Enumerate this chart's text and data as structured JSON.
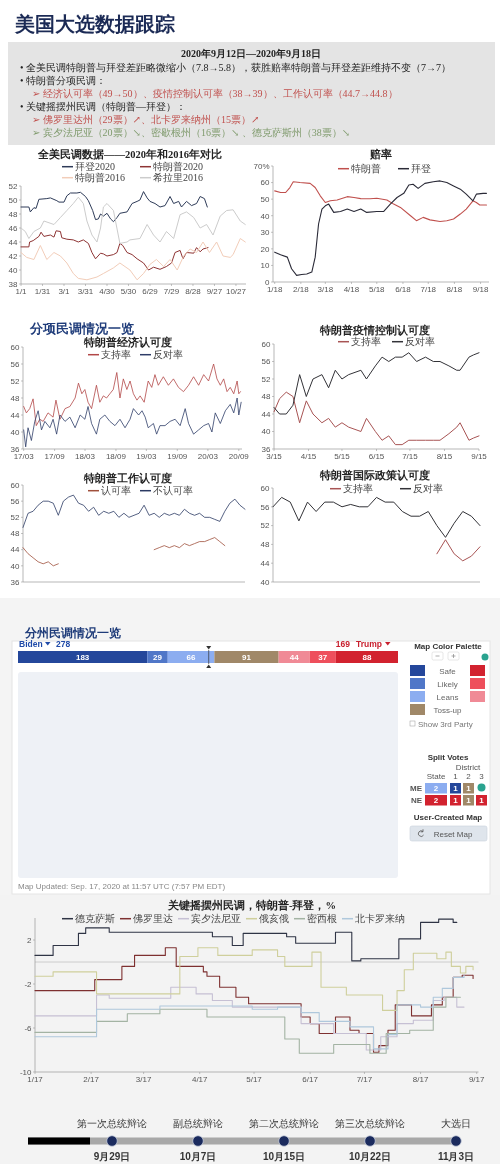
{
  "chart_data": [
    {
      "type": "other",
      "title": "美国大选数据跟踪",
      "subtitle": "2020年9月12日—2020年9月18日",
      "annotations": [
        "• 全美民调特朗普与拜登差距略微缩小（7.8→5.8），获胜赔率特朗普与拜登差距维持不变（7→7）",
        "• 特朗普分项民调：",
        "➢ 经济认可率（49→50）、疫情控制认可率（38→39）、工作认可率（44.7→44.8）",
        "• 关键摇摆州民调（特朗普—拜登）：",
        "➢ 佛罗里达州（29票）↗、北卡罗来纳州（15票）↗",
        "➢ 宾夕法尼亚（20票）↘、密歇根州（16票）↘ 、德克萨斯州（38票）↘"
      ]
    },
    {
      "type": "line",
      "title": "全美民调数据——2020年和2016年对比",
      "xlim": [
        "--01-01",
        "--11-10"
      ],
      "xticks": [
        {
          "value": "--01-01",
          "label": "1/1"
        },
        {
          "value": "--01-31",
          "label": "1/31"
        },
        {
          "value": "--03-01",
          "label": "3/1"
        },
        {
          "value": "--03-31",
          "label": "3/31"
        },
        {
          "value": "--04-30",
          "label": "4/30"
        },
        {
          "value": "--05-30",
          "label": "5/30"
        },
        {
          "value": "--06-29",
          "label": "6/29"
        },
        {
          "value": "--07-29",
          "label": "7/29"
        },
        {
          "value": "--08-28",
          "label": "8/28"
        },
        {
          "value": "--09-27",
          "label": "9/27"
        },
        {
          "value": "--10-27",
          "label": "10/27"
        }
      ],
      "ylim": [
        38,
        52
      ],
      "yticks": [
        38,
        40,
        42,
        44,
        46,
        48,
        50,
        52
      ],
      "legend": "top",
      "series": [
        {
          "name": "拜登2020",
          "color": "#2e3b58",
          "x": [
            "--01-01",
            "--01-12",
            "--01-14",
            "--01-19",
            "--01-22",
            "--01-26",
            "--02-06",
            "--02-11",
            "--02-20",
            "--02-23",
            "--03-01",
            "--03-05",
            "--03-10",
            "--03-19",
            "--03-24",
            "--03-31",
            "--04-04",
            "--04-10",
            "--04-14",
            "--04-18",
            "--04-21",
            "--04-25",
            "--04-30",
            "--05-05",
            "--05-09",
            "--05-14",
            "--05-18",
            "--05-28",
            "--06-04",
            "--06-11",
            "--06-15",
            "--06-20",
            "--06-25",
            "--06-29",
            "--07-06",
            "--07-13",
            "--07-20",
            "--07-27",
            "--08-01",
            "--08-08",
            "--08-12",
            "--08-19",
            "--08-26",
            "--09-02",
            "--09-07",
            "--09-13",
            "--09-17"
          ],
          "values": [
            49.0,
            49.0,
            48.3,
            48.9,
            48.8,
            50.1,
            50.2,
            50.3,
            49.9,
            49.7,
            49.7,
            50.6,
            51.0,
            51.0,
            51.1,
            50.5,
            49.9,
            48.5,
            47.2,
            47.3,
            48.0,
            47.7,
            48.1,
            47.3,
            46.9,
            47.5,
            48.1,
            48.3,
            49.5,
            49.8,
            50.0,
            51.2,
            50.3,
            49.8,
            49.5,
            49.0,
            49.2,
            50.5,
            49.5,
            49.8,
            49.0,
            49.8,
            49.2,
            49.5,
            50.5,
            50.2,
            49.0
          ]
        },
        {
          "name": "特朗普2020",
          "color": "#8e3434",
          "x": [
            "--01-01",
            "--01-12",
            "--01-13",
            "--01-18",
            "--01-26",
            "--01-29",
            "--02-02",
            "--02-11",
            "--02-16",
            "--02-19",
            "--02-25",
            "--02-27",
            "--03-05",
            "--03-14",
            "--03-21",
            "--03-28",
            "--04-04",
            "--04-09",
            "--04-14",
            "--04-21",
            "--04-25",
            "--04-30",
            "--05-09",
            "--05-14",
            "--05-18",
            "--05-22",
            "--05-28",
            "--06-04",
            "--06-11",
            "--06-20",
            "--06-27",
            "--07-04",
            "--07-13",
            "--07-22",
            "--07-29",
            "--08-03",
            "--08-10",
            "--08-14",
            "--08-19",
            "--08-29",
            "--09-02",
            "--09-07",
            "--09-11",
            "--09-18"
          ],
          "values": [
            43.3,
            43.3,
            44.0,
            44.2,
            44.8,
            45.4,
            44.8,
            45.0,
            44.7,
            45.6,
            45.5,
            44.6,
            44.4,
            44.3,
            44.0,
            44.3,
            43.8,
            42.5,
            41.6,
            42.4,
            42.3,
            42.0,
            42.2,
            42.5,
            43.8,
            43.5,
            42.5,
            42.2,
            41.6,
            41.0,
            40.0,
            40.4,
            40.1,
            40.5,
            41.0,
            42.5,
            42.8,
            41.6,
            42.5,
            42.4,
            43.2,
            42.6,
            43.0,
            43.2
          ]
        },
        {
          "name": "特朗普2016",
          "color": "#f2cdb9",
          "x": [
            "--01-01",
            "--01-09",
            "--01-19",
            "--01-28",
            "--02-06",
            "--02-16",
            "--02-25",
            "--03-05",
            "--03-14",
            "--03-21",
            "--04-02",
            "--04-16",
            "--04-25",
            "--05-09",
            "--05-18",
            "--06-01",
            "--06-11",
            "--06-20",
            "--06-29",
            "--07-08",
            "--07-18",
            "--07-27",
            "--08-06",
            "--08-15",
            "--08-24",
            "--09-02",
            "--09-11",
            "--09-20",
            "--09-30",
            "--10-09",
            "--10-19",
            "--10-23",
            "--11-02",
            "--11-09"
          ],
          "values": [
            42.5,
            41.8,
            41.5,
            43.5,
            41.5,
            42.5,
            42.0,
            41.0,
            39.5,
            38.8,
            38.6,
            39.0,
            39.5,
            40.3,
            41.0,
            40.0,
            38.6,
            39.5,
            40.8,
            41.5,
            40.5,
            41.5,
            40.0,
            42.0,
            43.0,
            42.5,
            44.0,
            42.5,
            44.0,
            42.0,
            41.8,
            42.2,
            44.5,
            44.0
          ]
        },
        {
          "name": "希拉里2016",
          "color": "#cccccc",
          "x": [
            "--01-01",
            "--01-07",
            "--01-12",
            "--01-19",
            "--01-28",
            "--02-02",
            "--02-16",
            "--02-25",
            "--03-05",
            "--03-14",
            "--03-21",
            "--03-28",
            "--04-02",
            "--04-09",
            "--04-16",
            "--04-21",
            "--04-25",
            "--04-30",
            "--05-09",
            "--05-18",
            "--05-28",
            "--06-01",
            "--06-15",
            "--06-25",
            "--07-04",
            "--07-13",
            "--07-22",
            "--08-01",
            "--08-10",
            "--08-19",
            "--08-29",
            "--09-07",
            "--09-16",
            "--09-25",
            "--10-05",
            "--10-14",
            "--10-23",
            "--11-02",
            "--11-09"
          ],
          "values": [
            46.0,
            45.5,
            44.5,
            45.5,
            46.0,
            47.0,
            46.5,
            47.5,
            48.5,
            49.5,
            50.4,
            49.5,
            47.0,
            45.0,
            44.0,
            46.0,
            49.0,
            49.5,
            48.5,
            43.8,
            44.0,
            44.3,
            44.5,
            46.5,
            45.0,
            44.0,
            45.5,
            44.5,
            47.9,
            48.3,
            47.5,
            46.0,
            46.5,
            45.0,
            47.7,
            48.5,
            48.6,
            47.0,
            46.5
          ]
        }
      ]
    },
    {
      "type": "line",
      "title": "赔率",
      "xlim": [
        "--01-16",
        "--09-28"
      ],
      "xticks": [
        {
          "value": "--01-18",
          "label": "1/18"
        },
        {
          "value": "--02-18",
          "label": "2/18"
        },
        {
          "value": "--03-18",
          "label": "3/18"
        },
        {
          "value": "--04-18",
          "label": "4/18"
        },
        {
          "value": "--05-18",
          "label": "5/18"
        },
        {
          "value": "--06-18",
          "label": "6/18"
        },
        {
          "value": "--07-18",
          "label": "7/18"
        },
        {
          "value": "--08-18",
          "label": "8/18"
        },
        {
          "value": "--09-18",
          "label": "9/18"
        }
      ],
      "ylim": [
        0,
        70
      ],
      "yticks": [
        0,
        10,
        20,
        30,
        40,
        50,
        60,
        {
          "value": 70,
          "label": "70%"
        }
      ],
      "legend": "top",
      "series": [
        {
          "name": "特朗普",
          "color": "#c0504d",
          "x": [
            "--01-18",
            "--01-25",
            "--01-31",
            "--02-05",
            "--02-09",
            "--02-17",
            "--02-29",
            "--03-06",
            "--03-12",
            "--03-18",
            "--03-24",
            "--04-01",
            "--04-13",
            "--04-21",
            "--04-29",
            "--05-10",
            "--05-18",
            "--05-30",
            "--06-07",
            "--06-15",
            "--06-27",
            "--07-04",
            "--07-12",
            "--07-20",
            "--08-01",
            "--08-09",
            "--08-17",
            "--08-25",
            "--09-01",
            "--09-09",
            "--09-13",
            "--09-17",
            "--09-25"
          ],
          "values": [
            55,
            54,
            54,
            57,
            60.5,
            60,
            59.5,
            57,
            52,
            48,
            49,
            49.5,
            51.5,
            51,
            50.3,
            50.2,
            50.5,
            49.5,
            47,
            45,
            40,
            37,
            39,
            37.5,
            36.5,
            37,
            38,
            41,
            44,
            49,
            48,
            46.5,
            46.5
          ]
        },
        {
          "name": "拜登",
          "color": "#2b2b38",
          "x": [
            "--01-18",
            "--01-25",
            "--02-02",
            "--02-07",
            "--02-13",
            "--02-19",
            "--02-25",
            "--03-02",
            "--03-06",
            "--03-10",
            "--03-14",
            "--03-18",
            "--03-22",
            "--03-28",
            "--04-05",
            "--04-13",
            "--04-21",
            "--04-29",
            "--05-06",
            "--05-18",
            "--05-26",
            "--06-03",
            "--06-11",
            "--06-19",
            "--06-25",
            "--06-30",
            "--07-06",
            "--07-14",
            "--07-24",
            "--08-01",
            "--08-09",
            "--08-17",
            "--08-25",
            "--09-01",
            "--09-09",
            "--09-13",
            "--09-21",
            "--09-25"
          ],
          "values": [
            18,
            16.5,
            15,
            8,
            4,
            4.5,
            4.8,
            6,
            15,
            35,
            44,
            46,
            47,
            42,
            42.5,
            44,
            42.5,
            44,
            42,
            42.5,
            42.5,
            47,
            51,
            53.5,
            58.5,
            59,
            56.5,
            59.5,
            60.5,
            61,
            60,
            58,
            56,
            53,
            49,
            53,
            53.5,
            53.5
          ]
        }
      ]
    },
    {
      "type": "other",
      "title": "分项民调情况一览"
    },
    {
      "type": "line",
      "title": "特朗普经济认可度",
      "xlim": [
        "2017-02-25",
        "2020-09-20"
      ],
      "xticks": [
        {
          "value": "2017-03",
          "label": "17/03"
        },
        {
          "value": "2017-09",
          "label": "17/09"
        },
        {
          "value": "2018-03",
          "label": "18/03"
        },
        {
          "value": "2018-09",
          "label": "18/09"
        },
        {
          "value": "2019-03",
          "label": "19/03"
        },
        {
          "value": "2019-09",
          "label": "19/09"
        },
        {
          "value": "2020-03",
          "label": "20/03"
        },
        {
          "value": "2020-09",
          "label": "20/09"
        }
      ],
      "ylim": [
        36,
        60
      ],
      "yticks": [
        36,
        40,
        44,
        48,
        52,
        56,
        60
      ],
      "legend": "top",
      "series": [
        {
          "name": "支持率",
          "color": "#b24747",
          "x": [
            "2017-03-01",
            "2017-03-17",
            "2017-04-06",
            "2017-04-26",
            "2017-05-15",
            "2017-06-05",
            "2017-06-25",
            "2017-07-24",
            "2017-08-23",
            "2017-09-09",
            "2017-10-03",
            "2017-11-02",
            "2017-12-01",
            "2018-01-01",
            "2018-01-21",
            "2018-02-10",
            "2018-02-28",
            "2018-03-19",
            "2018-04-09",
            "2018-05-08",
            "2018-05-28",
            "2018-06-18",
            "2018-07-07",
            "2018-07-27",
            "2018-08-16",
            "2018-09-06",
            "2018-09-25",
            "2018-10-15",
            "2018-11-05",
            "2018-11-24",
            "2018-12-14",
            "2019-01-04",
            "2019-01-23",
            "2019-02-16",
            "2019-03-12",
            "2019-04-02",
            "2019-04-21",
            "2019-05-11",
            "2019-06-10",
            "2019-07-10",
            "2019-08-09",
            "2019-09-08",
            "2019-10-08",
            "2019-11-07",
            "2019-12-07",
            "2020-01-06",
            "2020-02-05",
            "2020-03-05",
            "2020-04-04",
            "2020-04-24",
            "2020-05-14",
            "2020-06-03",
            "2020-06-23",
            "2020-07-12",
            "2020-08-02",
            "2020-08-22",
            "2020-09-01",
            "2020-09-11"
          ],
          "values": [
            46,
            44.5,
            45.5,
            47.8,
            41.5,
            43,
            42.5,
            44.5,
            43.5,
            47.5,
            43,
            45.5,
            46,
            48,
            51.5,
            49,
            50,
            47,
            45.5,
            51,
            47,
            48.5,
            48,
            49,
            50,
            54,
            48,
            52.5,
            50,
            52,
            49,
            47.5,
            48.5,
            47,
            52,
            50.5,
            53.5,
            51,
            53,
            51,
            52.5,
            50.5,
            49.5,
            51,
            53,
            51,
            53.5,
            52,
            56,
            52.5,
            51,
            52.5,
            49.5,
            50.5,
            49,
            52,
            49,
            49.5
          ]
        },
        {
          "name": "反对率",
          "color": "#2e3d68",
          "x": [
            "2017-03-01",
            "2017-03-13",
            "2017-03-27",
            "2017-04-16",
            "2017-05-06",
            "2017-05-26",
            "2017-06-15",
            "2017-07-05",
            "2017-08-04",
            "2017-08-23",
            "2017-09-13",
            "2017-10-03",
            "2017-11-02",
            "2017-12-01",
            "2018-01-01",
            "2018-01-31",
            "2018-02-28",
            "2018-03-19",
            "2018-04-09",
            "2018-05-08",
            "2018-05-28",
            "2018-06-27",
            "2018-07-27",
            "2018-08-26",
            "2018-09-25",
            "2018-10-25",
            "2018-11-24",
            "2018-12-14",
            "2019-01-14",
            "2019-02-03",
            "2019-02-22",
            "2019-03-12",
            "2019-04-12",
            "2019-05-01",
            "2019-05-21",
            "2019-06-20",
            "2019-07-20",
            "2019-08-19",
            "2019-09-18",
            "2019-10-18",
            "2019-11-07",
            "2019-12-07",
            "2020-01-06",
            "2020-02-05",
            "2020-03-05",
            "2020-03-25",
            "2020-04-14",
            "2020-05-14",
            "2020-06-13",
            "2020-07-12",
            "2020-08-02",
            "2020-08-22",
            "2020-09-01",
            "2020-09-15"
          ],
          "values": [
            40.5,
            36.5,
            41,
            38,
            42.5,
            45,
            40.5,
            42.5,
            41,
            43,
            39.5,
            44,
            42.5,
            43.5,
            41,
            44,
            43,
            46,
            42,
            39.5,
            43,
            44,
            42.5,
            41.5,
            43,
            41,
            43,
            45.5,
            44,
            45,
            43.5,
            41,
            42,
            39.5,
            41.5,
            41.5,
            42.5,
            43,
            41.5,
            45.5,
            42,
            39.5,
            40.5,
            41.5,
            42,
            40,
            44.5,
            42,
            45,
            46.5,
            44.5,
            48,
            44,
            47
          ]
        }
      ]
    },
    {
      "type": "line",
      "title": "特朗普疫情控制认可度",
      "xlim": [
        "--03-15",
        "--09-15"
      ],
      "xticks": [
        {
          "value": "--03-15",
          "label": "3/15"
        },
        {
          "value": "--04-15",
          "label": "4/15"
        },
        {
          "value": "--05-15",
          "label": "5/15"
        },
        {
          "value": "--06-15",
          "label": "6/15"
        },
        {
          "value": "--07-15",
          "label": "7/15"
        },
        {
          "value": "--08-15",
          "label": "8/15"
        },
        {
          "value": "--09-15",
          "label": "9/15"
        }
      ],
      "ylim": [
        36,
        60
      ],
      "yticks": [
        36,
        40,
        44,
        48,
        52,
        56,
        60
      ],
      "legend": "top",
      "x": [
        "--03-15",
        "--03-20",
        "--03-26",
        "--04-01",
        "--04-07",
        "--04-13",
        "--04-19",
        "--04-27",
        "--05-03",
        "--05-09",
        "--05-15",
        "--05-21",
        "--06-01",
        "--06-06",
        "--06-14",
        "--06-20",
        "--06-26",
        "--07-02",
        "--07-08",
        "--07-14",
        "--07-21",
        "--07-29",
        "--08-05",
        "--08-11",
        "--08-19",
        "--08-26",
        "--08-29",
        "--09-06",
        "--09-10",
        "--09-15"
      ],
      "series": [
        {
          "name": "支持率",
          "color": "#a85454",
          "values": [
            44.5,
            47.5,
            49,
            48,
            42,
            47,
            44,
            42,
            43,
            41,
            42,
            41,
            40,
            43,
            40,
            38,
            39,
            37,
            37,
            38,
            38,
            38,
            38,
            38,
            39.5,
            41,
            42,
            38,
            38.5,
            39
          ]
        },
        {
          "name": "反对率",
          "color": "#333338",
          "values": [
            45.5,
            44,
            44,
            46,
            53,
            48,
            52,
            53,
            50,
            54,
            52,
            53,
            54,
            52,
            55,
            57,
            56,
            57,
            57,
            58,
            56,
            57,
            56,
            56,
            55,
            54,
            54,
            57,
            57.5,
            58
          ]
        }
      ]
    },
    {
      "type": "line",
      "title": "特朗普工作认可度",
      "tick_labels": "y",
      "categories": [
        null,
        null,
        null,
        null,
        null,
        null,
        null,
        null,
        null,
        null,
        null,
        null,
        null,
        null,
        null,
        null,
        null,
        null,
        null,
        null,
        null,
        null,
        null,
        null,
        null,
        null,
        null,
        null,
        null,
        null,
        null,
        null,
        null,
        null,
        null,
        null,
        null,
        null,
        null,
        null,
        null,
        null,
        null,
        null,
        null
      ],
      "ylim": [
        36,
        60
      ],
      "yticks": [
        36,
        40,
        44,
        48,
        52,
        56,
        60
      ],
      "legend": "top",
      "series": [
        {
          "name": "认可率",
          "color": "#a0503c",
          "values": [
            44.5,
            43,
            42,
            41,
            40.5,
            41,
            40,
            40.5,
            null,
            null,
            null,
            null,
            null,
            null,
            null,
            null,
            null,
            null,
            null,
            null,
            null,
            null,
            null,
            null,
            null,
            null,
            44,
            44.5,
            45,
            44.5,
            45,
            44.5,
            45.5,
            45,
            45.5,
            46,
            46,
            46.5,
            47,
            46,
            45,
            null,
            null,
            null,
            null
          ]
        },
        {
          "name": "不认可率",
          "color": "#2b3a63",
          "values": [
            49.5,
            53,
            53.5,
            55,
            56,
            56,
            55.5,
            52.5,
            56,
            57,
            57.5,
            55.5,
            55,
            53.5,
            54.5,
            52.5,
            53.5,
            53,
            53.5,
            52,
            53,
            52,
            52.5,
            53,
            55,
            52.5,
            53,
            52,
            53,
            52.5,
            53,
            52.5,
            54,
            53,
            52.5,
            53,
            52,
            52,
            51.5,
            51,
            53.5,
            55.5,
            56.5,
            55,
            54
          ]
        }
      ]
    },
    {
      "type": "line",
      "title": "特朗普国际政策认可度",
      "tick_labels": "y",
      "categories": [
        null,
        null,
        null,
        null,
        null,
        null,
        null,
        null,
        null,
        null,
        null,
        null,
        null,
        null,
        null,
        null,
        null,
        null,
        null,
        null,
        null,
        null,
        null,
        null,
        null
      ],
      "ylim": [
        40,
        60
      ],
      "yticks": [
        40,
        44,
        48,
        52,
        56,
        60
      ],
      "legend": "top",
      "series": [
        {
          "name": "支持率",
          "color": "#a85454",
          "values": [
            null,
            null,
            null,
            null,
            null,
            null,
            null,
            null,
            null,
            null,
            null,
            null,
            null,
            null,
            null,
            null,
            null,
            null,
            null,
            46,
            49,
            46,
            44.5,
            45.5,
            47.5
          ]
        },
        {
          "name": "反对率",
          "color": "#333338",
          "values": [
            56,
            58,
            57,
            53,
            57,
            55,
            57,
            57,
            56,
            56.5,
            56,
            56,
            58,
            57,
            57,
            55,
            54,
            54,
            55,
            52,
            49.5,
            52.5,
            55,
            54,
            52
          ]
        }
      ]
    },
    {
      "type": "bar",
      "title": "分州民调情况一览",
      "orientation": "horizontal",
      "stacked": true,
      "categories": [
        null
      ],
      "data_labels": true,
      "legend": "right",
      "legend_title": "Map Color Palette",
      "ref_lines": [
        {
          "axis": "x",
          "value": 270,
          "color": "#333333"
        }
      ],
      "series": [
        {
          "name": "Safe",
          "color": "#24479b",
          "values": [
            183
          ]
        },
        {
          "name": "Likely",
          "color": "#5077c8",
          "values": [
            29
          ]
        },
        {
          "name": "Leans",
          "color": "#8cadf0",
          "values": [
            66
          ]
        },
        {
          "name": "Toss-up",
          "color": "#a08868",
          "values": [
            91
          ]
        },
        {
          "color": "#f08a96",
          "values": [
            44
          ]
        },
        {
          "color": "#ee4f5c",
          "values": [
            37
          ]
        },
        {
          "color": "#d2222f",
          "values": [
            88
          ]
        }
      ],
      "annotations": [
        "Biden",
        "278",
        "169",
        "Trump",
        "Show 3rd Party",
        "Split Votes",
        "State",
        "District",
        "1",
        "2",
        "3",
        "ME",
        "2",
        "1",
        "1",
        "NE",
        "2",
        "1",
        "1",
        "1",
        "User-Created Map",
        "Reset Map",
        "Map Updated: Sep. 17, 2020 at 11:57 UTC (7:57 PM EDT)"
      ]
    },
    {
      "type": "step",
      "title": "关键摇摆州民调，特朗普-拜登，%",
      "xlim": [
        "--01-17",
        "--09-18"
      ],
      "xticks": [
        {
          "value": "--01-17",
          "label": "1/17"
        },
        {
          "value": "--02-17",
          "label": "2/17"
        },
        {
          "value": "--03-17",
          "label": "3/17"
        },
        {
          "value": "--04-17",
          "label": "4/17"
        },
        {
          "value": "--05-17",
          "label": "5/17"
        },
        {
          "value": "--06-17",
          "label": "6/17"
        },
        {
          "value": "--07-17",
          "label": "7/17"
        },
        {
          "value": "--08-17",
          "label": "8/17"
        },
        {
          "value": "--09-17",
          "label": "9/17"
        }
      ],
      "ylim": [
        -10,
        4
      ],
      "yticks": [
        -10,
        -6,
        -2,
        2
      ],
      "legend": "top",
      "ref_lines": [
        {
          "axis": "y",
          "value": 0,
          "color": "#c8c8c8"
        }
      ],
      "series": [
        {
          "name": "德克萨斯",
          "color": "#2f3445",
          "x": [
            "--01-17",
            "--01-27",
            "--02-10",
            "--02-14",
            "--02-27",
            "--04-24",
            "--05-05",
            "--05-11",
            "--06-04",
            "--06-09",
            "--07-01",
            "--07-10",
            "--07-15",
            "--08-05",
            "--08-17",
            "--08-27",
            "--09-04",
            "--09-06"
          ],
          "values": [
            0.6,
            1.5,
            2.6,
            3.1,
            2.7,
            2.3,
            1.5,
            2.6,
            2.3,
            1.7,
            2.7,
            0.1,
            0.3,
            2.1,
            3.6,
            3.9,
            3.6,
            3.6
          ]
        },
        {
          "name": "佛罗里达",
          "color": "#7e3030",
          "x": [
            "--01-17",
            "--02-19",
            "--03-05",
            "--03-12",
            "--03-29",
            "--04-04",
            "--04-19",
            "--04-21",
            "--04-28",
            "--05-07",
            "--05-14",
            "--06-12",
            "--06-17",
            "--06-22",
            "--07-01",
            "--07-09",
            "--07-14",
            "--07-22",
            "--07-25",
            "--07-30",
            "--08-03",
            "--08-12",
            "--08-23",
            "--08-29",
            "--09-04",
            "--09-09",
            "--09-15"
          ],
          "values": [
            -2.6,
            -1.6,
            -0.4,
            0.6,
            1.3,
            -0.4,
            -0.9,
            -1.3,
            -2.3,
            -3.2,
            -3.8,
            -5.0,
            -5.6,
            -6.5,
            -5.0,
            -6.2,
            -6.5,
            -8.2,
            -7.6,
            -6.2,
            -3.9,
            -4.9,
            -3.9,
            -3.2,
            -1.4,
            -1.2,
            -1.5
          ]
        },
        {
          "name": "宾夕法尼亚",
          "color": "#c6c0d4",
          "x": [
            "--01-17",
            "--02-20",
            "--02-27",
            "--04-01",
            "--04-15",
            "--04-24",
            "--05-05",
            "--06-12",
            "--06-30",
            "--07-18",
            "--07-26",
            "--08-04",
            "--08-13",
            "--08-24",
            "--08-30",
            "--09-06",
            "--09-10"
          ],
          "values": [
            -4.9,
            -3.0,
            -3.3,
            -2.3,
            -2.9,
            -3.5,
            -4.1,
            -5.6,
            -6.5,
            -8.0,
            -6.8,
            -5.6,
            -5.3,
            -3.5,
            -3.2,
            -4.1,
            -4.1
          ]
        },
        {
          "name": "俄亥俄",
          "color": "#cfcf9c",
          "x": [
            "--01-17",
            "--01-27",
            "--02-20",
            "--04-06",
            "--04-16",
            "--04-27",
            "--05-16",
            "--05-30",
            "--06-03",
            "--06-18",
            "--06-23",
            "--07-07",
            "--07-27",
            "--08-04",
            "--08-08",
            "--08-13",
            "--08-26",
            "--08-31",
            "--09-03",
            "--09-08",
            "--09-11",
            "--09-15"
          ],
          "values": [
            -1.3,
            -0.9,
            -2.9,
            0.5,
            1.3,
            0.6,
            1.1,
            0.5,
            -0.4,
            0.9,
            -2.3,
            -3.0,
            -4.4,
            -2.6,
            -0.7,
            0.8,
            0.3,
            0.9,
            -0.4,
            -1.0,
            -0.4,
            -0.7
          ]
        },
        {
          "name": "密西根",
          "color": "#a3b3a3",
          "x": [
            "--01-17",
            "--02-20",
            "--03-08",
            "--03-26",
            "--04-21",
            "--06-03",
            "--06-11",
            "--06-30",
            "--07-20",
            "--07-29",
            "--08-11",
            "--08-24",
            "--08-31",
            "--09-08"
          ],
          "values": [
            -6.4,
            -5.4,
            -4.7,
            -4.3,
            -5.0,
            -7.0,
            -8.3,
            -7.5,
            -8.3,
            -6.5,
            -6.2,
            -4.1,
            -3.2,
            -3.2
          ]
        },
        {
          "name": "北卡罗来纳",
          "color": "#afc8dc",
          "x": [
            "--01-17",
            "--02-20",
            "--03-26",
            "--05-16",
            "--05-30",
            "--06-12",
            "--06-22",
            "--07-09",
            "--07-22",
            "--07-30",
            "--08-04",
            "--08-17",
            "--08-24",
            "--08-29",
            "--09-04",
            "--09-10"
          ],
          "values": [
            -6.8,
            -4.3,
            -4.0,
            -4.3,
            -4.1,
            -4.6,
            -5.4,
            -5.9,
            -7.9,
            -6.6,
            -3.9,
            -4.1,
            -3.2,
            -2.4,
            -1.4,
            -1.2
          ]
        }
      ]
    },
    {
      "type": "other",
      "categories": [
        "第一次总统辩论",
        "副总统辩论",
        "第二次总统辩论",
        "第三次总统辩论",
        "大选日"
      ],
      "annotations": [
        "9月29日",
        "10月7日",
        "10月15日",
        "10月22日",
        "11月3日"
      ]
    }
  ]
}
